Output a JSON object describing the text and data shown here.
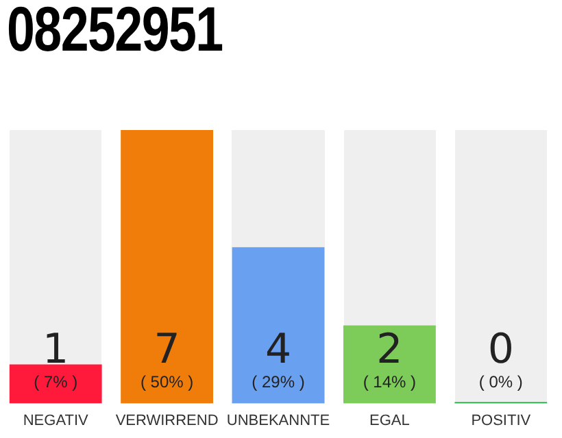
{
  "chart_data": {
    "type": "bar",
    "title": "08252951",
    "categories": [
      "NEGATIV",
      "VERWIRREND",
      "UNBEKANNTE",
      "EGAL",
      "POSITIV"
    ],
    "values": [
      1,
      7,
      4,
      2,
      0
    ],
    "colors": [
      "#ff1a3c",
      "#f07d0a",
      "#6aa0f0",
      "#7dcc5a",
      "#22aa44"
    ],
    "ylim": [
      0,
      7
    ],
    "tick_labels": "x",
    "grid": false,
    "legend": false,
    "data_labels": true,
    "annotations": [
      "( 7% )",
      "( 50% )",
      "( 29% )",
      "( 14% )",
      "( 0% )"
    ]
  }
}
